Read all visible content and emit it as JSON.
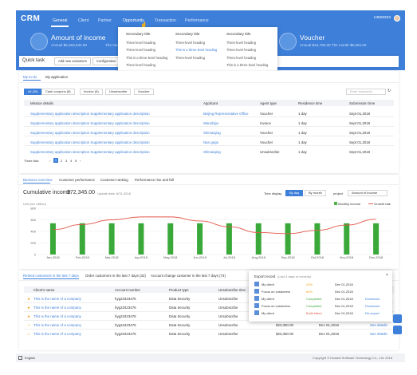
{
  "app": {
    "logo": "CRM"
  },
  "nav": {
    "items": [
      "General",
      "Client",
      "Partner",
      "Opportunity",
      "Transaction",
      "Performance"
    ],
    "user": "13828323"
  },
  "cards": [
    {
      "title": "Amount of income",
      "sub": "Annual $6,283,534.00"
    },
    {
      "title": "Voucher",
      "sub": "Annual $42,760.00  The month $5,684.00"
    }
  ],
  "card_partial": {
    "month": "The month"
  },
  "dropdown": {
    "columns": [
      {
        "heading": "Secondary title",
        "items": [
          "Three-level heading",
          "Three-level heading",
          "This is a three-level heading",
          "Three-level heading"
        ]
      },
      {
        "heading": "Secondary title",
        "items": [
          "Three-level heading",
          "This is a three-level heading",
          "Three-level heading"
        ]
      },
      {
        "heading": "Secondary title",
        "items": [
          "Three-level heading",
          "Three-level heading",
          "Three-level heading",
          "This is a three-level heading",
          "Three-level heading",
          "This is a three-level heading"
        ]
      }
    ]
  },
  "quick": {
    "title": "Quick task",
    "buttons": [
      "Add new customers",
      "Configuration"
    ]
  },
  "todo": {
    "tabs": [
      "My to-do",
      "My application"
    ],
    "filters": [
      "All (35)",
      "Cash coupons (8)",
      "Invoice (6)",
      "Unsubscribe",
      "Voucher"
    ],
    "search_placeholder": "Enter keywords",
    "headers": [
      "Mission details",
      "Applicant",
      "Agent type",
      "Residence time",
      "Submission time"
    ],
    "rows": [
      [
        "Supplementary application description Supplementary application description",
        "Beijing Representative Office",
        "Voucher",
        "1 day",
        "Sept 01,2018"
      ],
      [
        "Supplementary application description Supplementary application description",
        "Wanshijia",
        "Invoice",
        "1 day",
        "Sept 01,2018"
      ],
      [
        "Supplementary application description Supplementary application description",
        "Shimaiqing",
        "Voucher",
        "1 day",
        "Sept 01,2018"
      ],
      [
        "Supplementary application description Supplementary application description",
        "Nan gege",
        "Voucher",
        "1 day",
        "Sept 01,2018"
      ],
      [
        "Supplementary application description Supplementary application description",
        "Shimaiqing",
        "Unsubscribe",
        "1 day",
        "Sept 01,2018"
      ]
    ],
    "pagination": {
      "label": "Three lists",
      "pages": [
        "1",
        "2",
        "3",
        "4",
        "5"
      ]
    }
  },
  "business": {
    "tabs": [
      "Business overview",
      "Customer performance",
      "Customer ranking",
      "Performance rise and fall"
    ],
    "title": "Cumulative income",
    "total": "$72,345.00",
    "update": "Update date: 8/31,2018",
    "time_label": "Time display",
    "time_opts": [
      "By day",
      "By month"
    ],
    "project_label": "project",
    "project_value": "Amount of income",
    "unit": "Unit (ten million)",
    "legend": [
      "Monthly income",
      "Growth rate"
    ]
  },
  "chart_data": {
    "type": "bar",
    "categories": [
      "Jan,2018",
      "Feb,2018",
      "Mar,2018",
      "Apr,2018",
      "May,2018",
      "Jun,2018",
      "Jul,2018",
      "Aug,2018",
      "Sep,2018",
      "Oct,2018",
      "Nov,2018",
      "Dec,2018"
    ],
    "y_ticks": [
      "800",
      "600",
      "400",
      "200",
      "0"
    ],
    "ylim": [
      0,
      800
    ],
    "series": [
      {
        "name": "Monthly income",
        "type": "bar",
        "values": [
          540,
          540,
          540,
          540,
          540,
          540,
          540,
          540,
          540,
          540,
          540,
          540
        ]
      },
      {
        "name": "Growth rate",
        "type": "line",
        "values": [
          430,
          520,
          600,
          650,
          650,
          580,
          480,
          380,
          360,
          420,
          510,
          610
        ]
      }
    ],
    "colors": {
      "bar": "#3aa93a",
      "line": "#e2584b"
    }
  },
  "customers": {
    "tabs": [
      "Retired customers in the last 7 days",
      "Order customers in the last 7 days (32)",
      "Account change customer in the last 7 days (74)"
    ],
    "headers": [
      "Client's name",
      "Account number",
      "Product type",
      "Unsubscribe time"
    ],
    "rows": [
      [
        "This is the name of a company",
        "hyg23423476",
        "Data Security",
        "Unsubscribe"
      ],
      [
        "This is the name of a company",
        "hyg23423476",
        "Data Security",
        "Unsubscribe"
      ],
      [
        "This is the name of a company",
        "hyg23423476",
        "Data Security",
        "Unsubscribe"
      ],
      [
        "This is the name of a company",
        "hyg23423476",
        "Data Security",
        "Unsubscribe"
      ],
      [
        "This is the name of a company",
        "hyg23423476",
        "Data Security",
        "Unsubscribe"
      ]
    ],
    "extra": [
      {
        "amount": "$23,350.00",
        "date": "Dec 01,2018",
        "action": "See details"
      },
      {
        "amount": "$23,350.00",
        "date": "Dec 01,2018",
        "action": "See details"
      }
    ]
  },
  "export": {
    "title": "Export record",
    "subtitle": "(Last 3 days of records)",
    "rows": [
      [
        "My client",
        "20%",
        "Dec 01,2018",
        ""
      ],
      [
        "Focus on customers",
        "60%",
        "Dec 01,2018",
        ""
      ],
      [
        "My client",
        "Completed",
        "Dec 01,2018",
        "Download"
      ],
      [
        "Focus on customers",
        "Completed",
        "Dec 01,2018",
        "Download"
      ],
      [
        "My client",
        "Build failed",
        "Dec 01,2018",
        "Re-export"
      ]
    ]
  },
  "footer": {
    "lang": "English",
    "copyright": "Copyright © Huawei Software Technology Co., Ltd. 2018"
  }
}
